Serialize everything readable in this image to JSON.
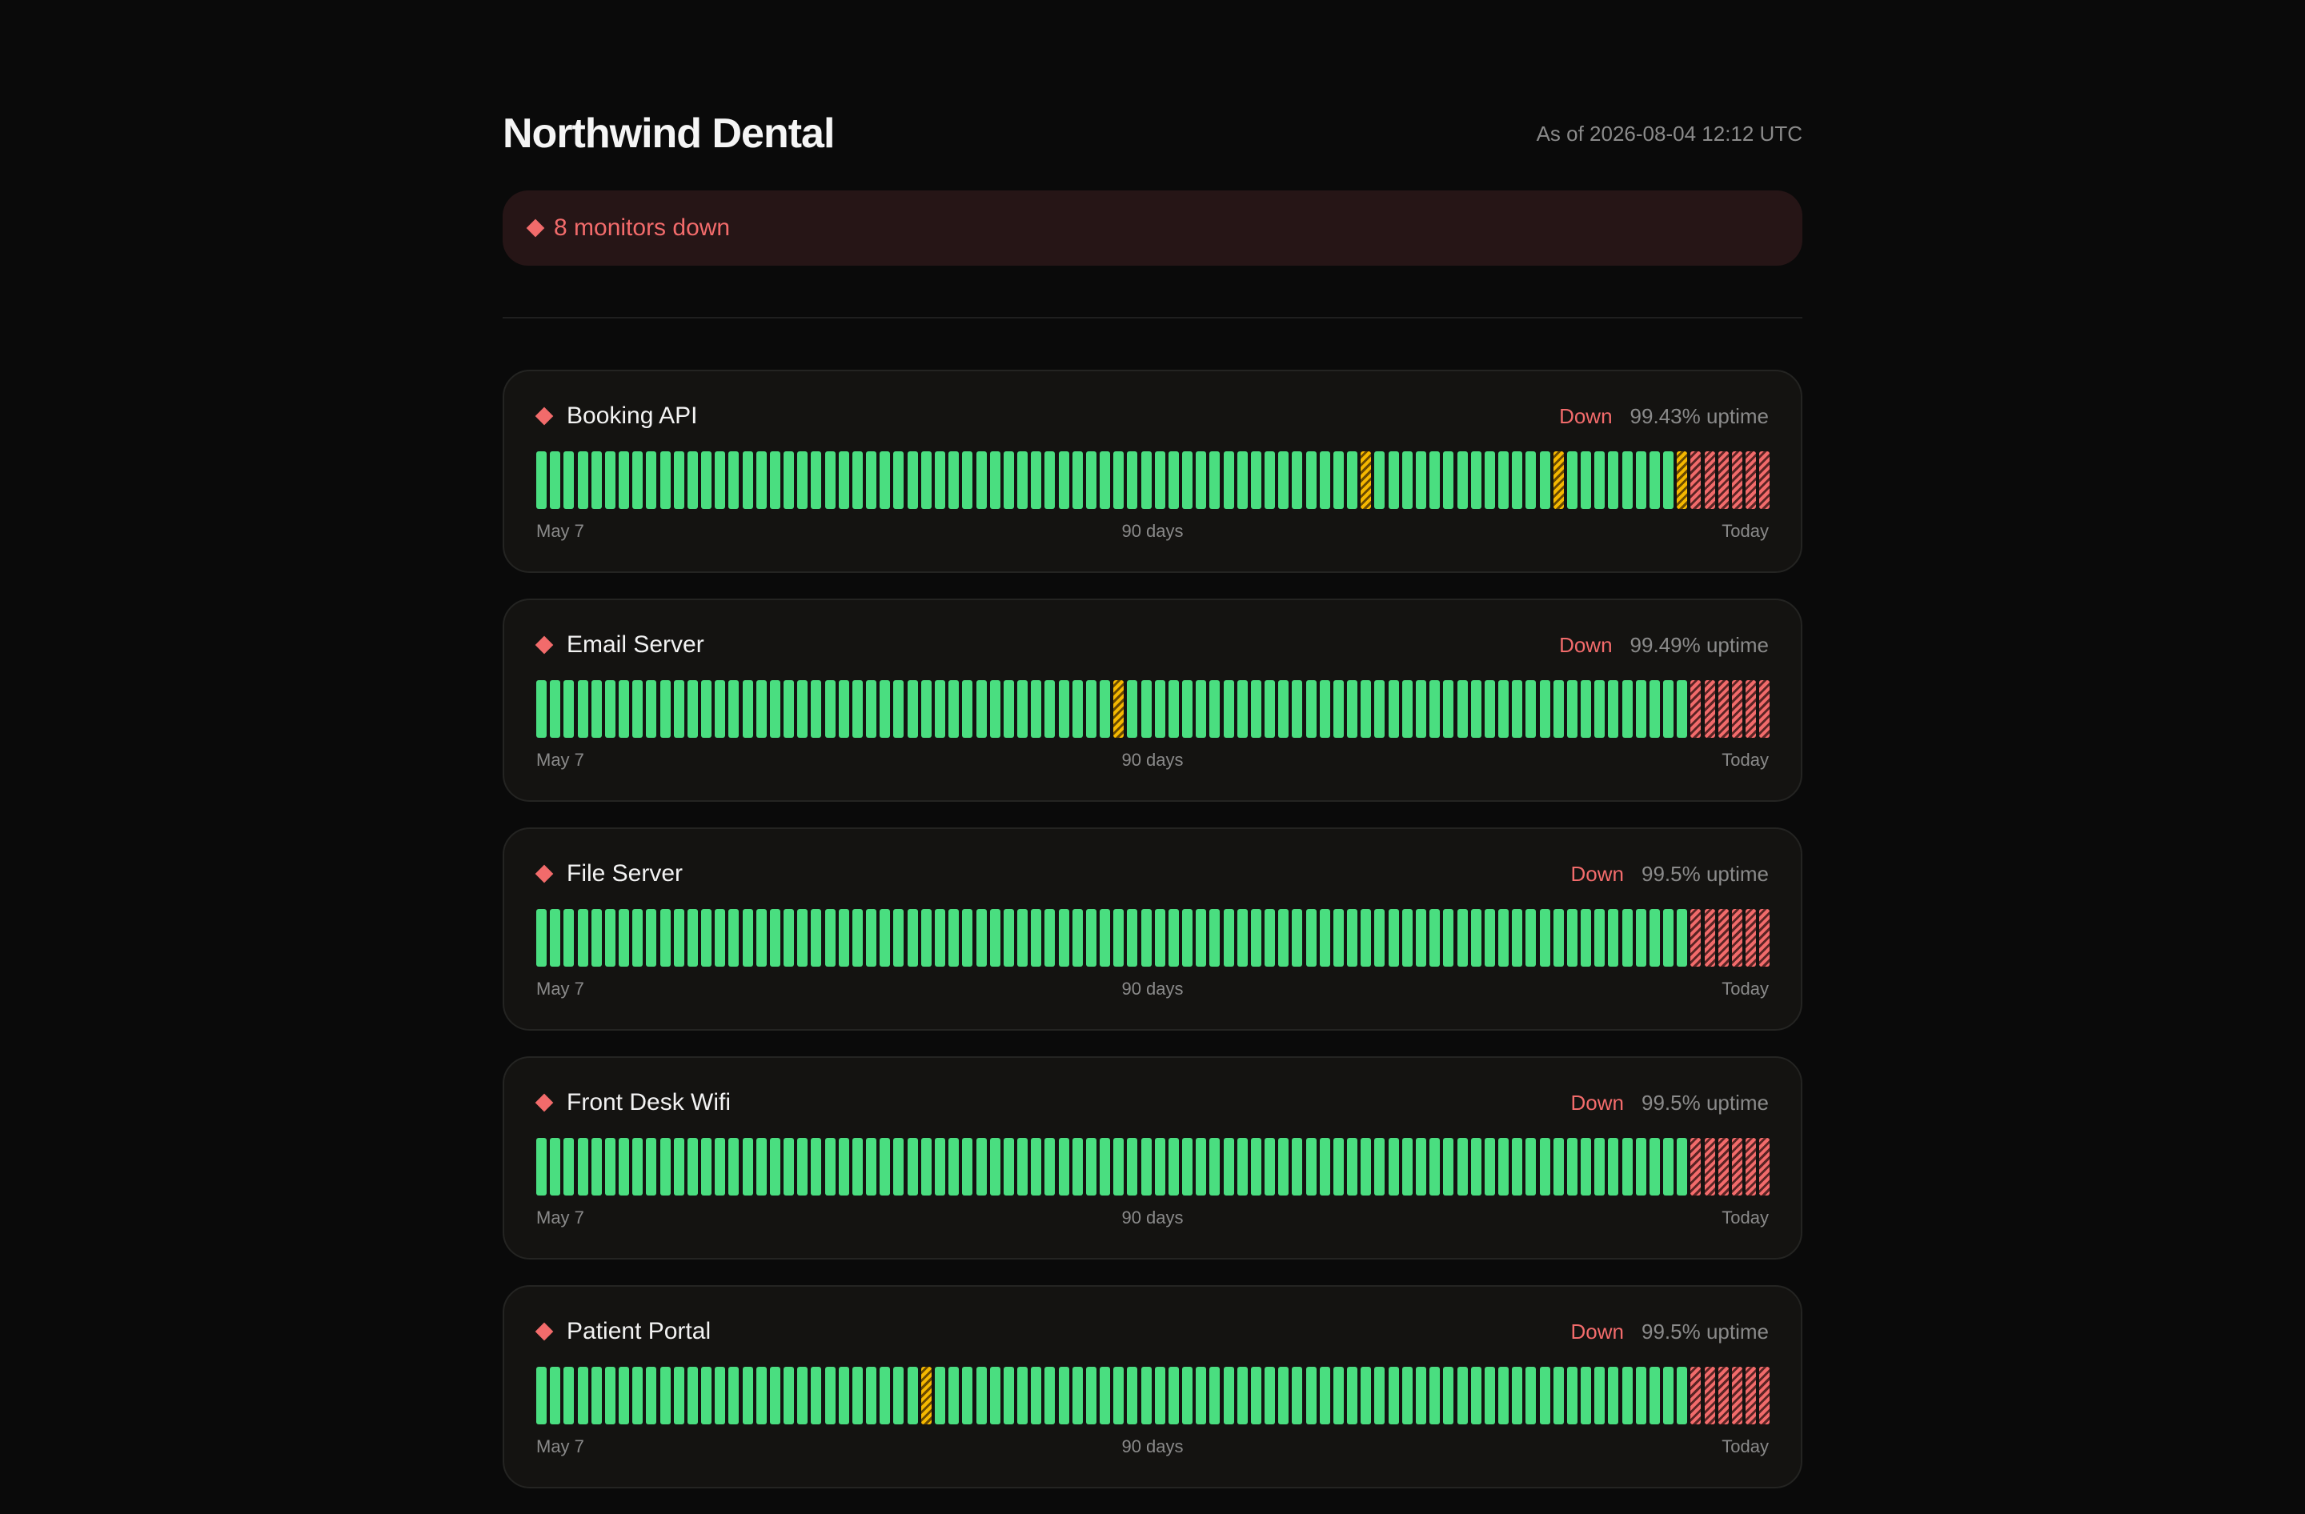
{
  "page": {
    "title": "Northwind Dental",
    "as_of": "As of 2026-08-04 12:12 UTC"
  },
  "alert": {
    "icon": "diamond-icon",
    "text": "8 monitors down",
    "color": "#f26b6b"
  },
  "colors": {
    "up": "#4ade80",
    "degraded": "#f5b800",
    "down": "#f26b6b",
    "background": "#0a0a0a",
    "card": "#141311"
  },
  "monitors": [
    {
      "name": "Booking API",
      "status": "Down",
      "uptime": "99.43% uptime",
      "axis_start": "May 7",
      "axis_mid": "90 days",
      "axis_end": "Today",
      "degraded_days": [
        60,
        74,
        83
      ],
      "down_days": [
        84,
        85,
        86,
        87,
        88,
        89
      ]
    },
    {
      "name": "Email Server",
      "status": "Down",
      "uptime": "99.49% uptime",
      "axis_start": "May 7",
      "axis_mid": "90 days",
      "axis_end": "Today",
      "degraded_days": [
        42
      ],
      "down_days": [
        84,
        85,
        86,
        87,
        88,
        89
      ]
    },
    {
      "name": "File Server",
      "status": "Down",
      "uptime": "99.5% uptime",
      "axis_start": "May 7",
      "axis_mid": "90 days",
      "axis_end": "Today",
      "degraded_days": [],
      "down_days": [
        84,
        85,
        86,
        87,
        88,
        89
      ]
    },
    {
      "name": "Front Desk Wifi",
      "status": "Down",
      "uptime": "99.5% uptime",
      "axis_start": "May 7",
      "axis_mid": "90 days",
      "axis_end": "Today",
      "degraded_days": [],
      "down_days": [
        84,
        85,
        86,
        87,
        88,
        89
      ]
    },
    {
      "name": "Patient Portal",
      "status": "Down",
      "uptime": "99.5% uptime",
      "axis_start": "May 7",
      "axis_mid": "90 days",
      "axis_end": "Today",
      "degraded_days": [
        28
      ],
      "down_days": [
        84,
        85,
        86,
        87,
        88,
        89
      ]
    }
  ]
}
